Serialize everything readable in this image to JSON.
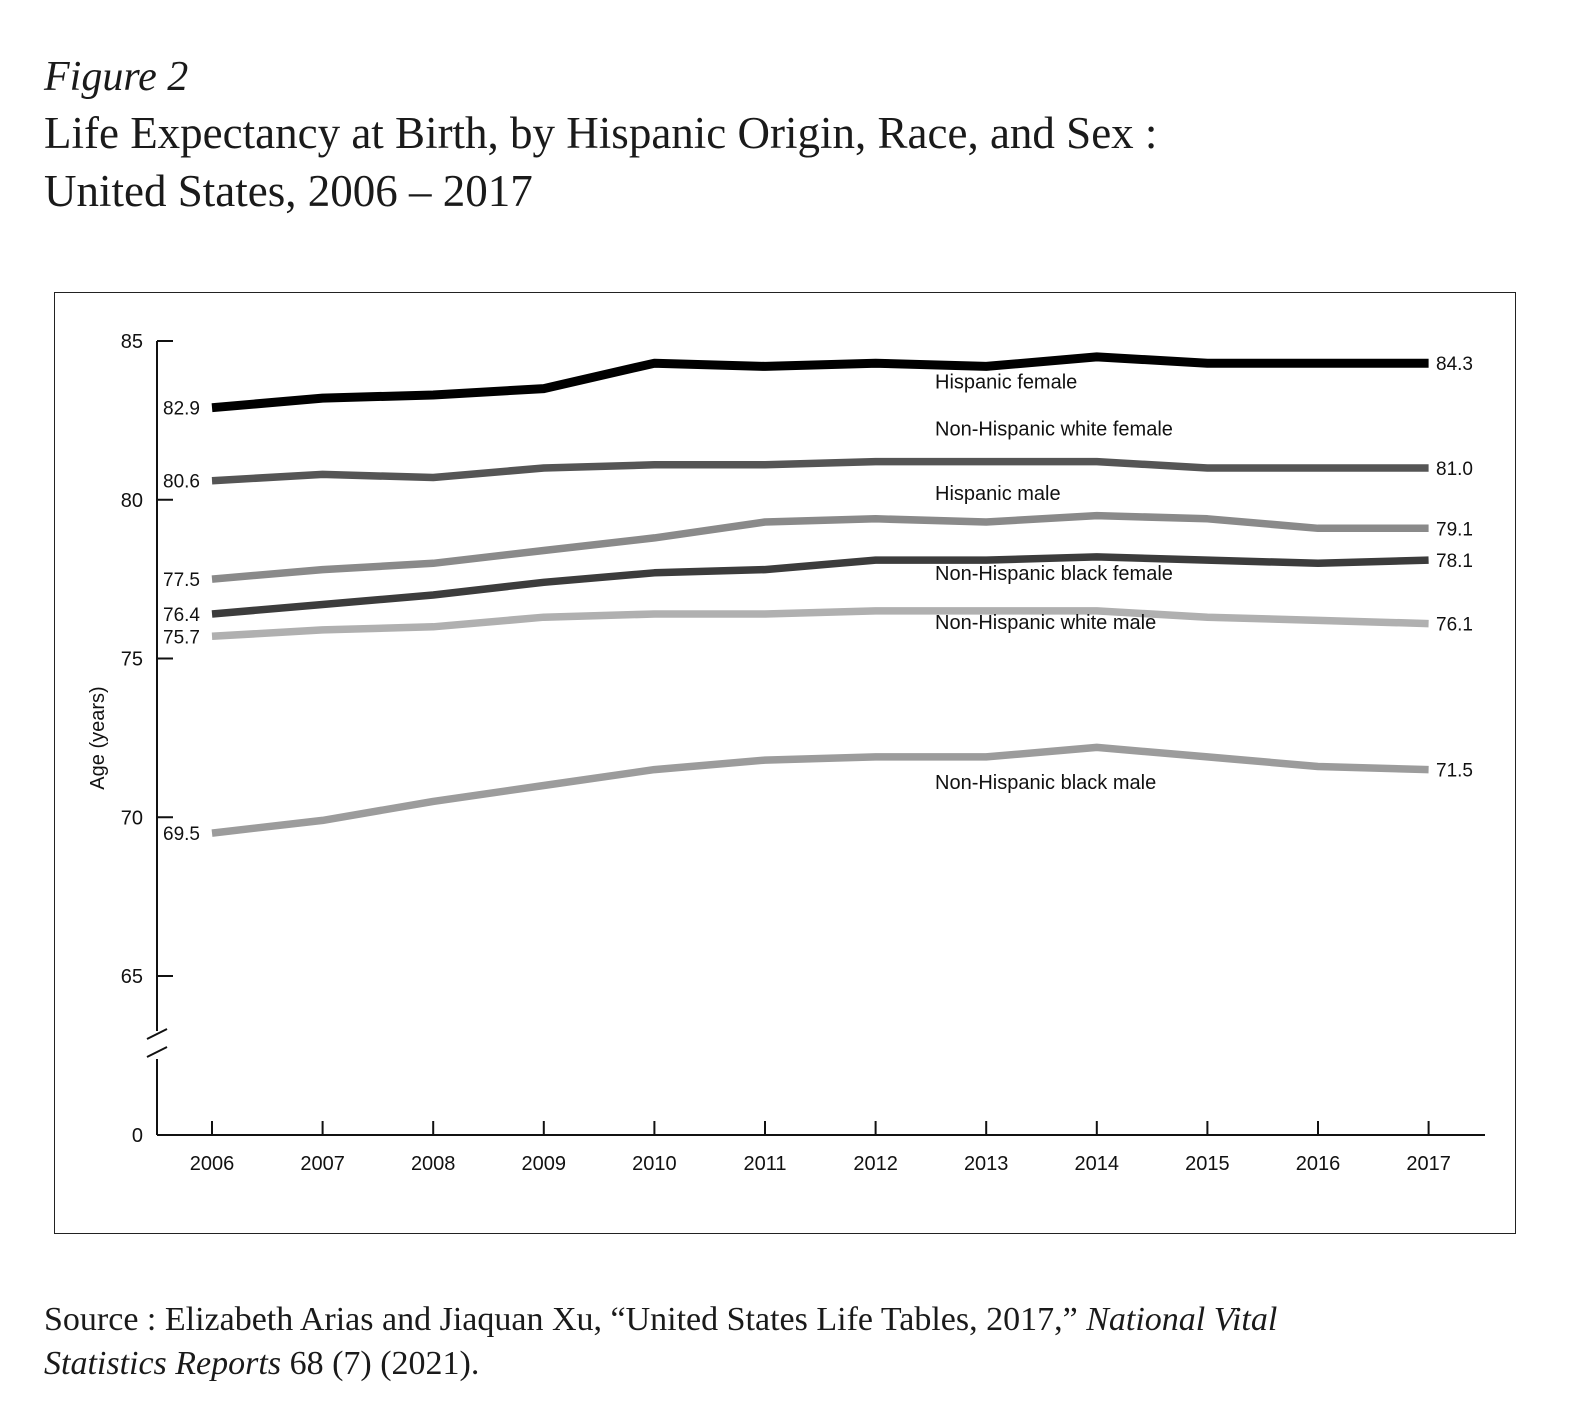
{
  "figure_label": "Figure 2",
  "title_line1": "Life Expectancy at Birth, by Hispanic Origin, Race, and Sex :",
  "title_line2": "United States, 2006 – 2017",
  "source": {
    "prefix": "Source : Elizabeth Arias and Jiaquan Xu, “United States Life Tables, 2017,” ",
    "journal_part1": "National Vital",
    "journal_part2": "Statistics Reports",
    "suffix": " 68 (7) (2021)."
  },
  "chart_data": {
    "type": "line",
    "ylabel": "Age (years)",
    "xlabel": "",
    "x": [
      2006,
      2007,
      2008,
      2009,
      2010,
      2011,
      2012,
      2013,
      2014,
      2015,
      2016,
      2017
    ],
    "y_ticks": [
      0,
      65,
      70,
      75,
      80,
      85
    ],
    "ylim": [
      0,
      85
    ],
    "y_axis_break": "between 0 and 65",
    "grid": false,
    "series": [
      {
        "name": "Hispanic female",
        "color": "#000000",
        "start_label": "82.9",
        "end_label": "84.3",
        "values": [
          82.9,
          83.2,
          83.3,
          83.5,
          84.3,
          84.2,
          84.3,
          84.2,
          84.5,
          84.3,
          84.3,
          84.3
        ]
      },
      {
        "name": "Non-Hispanic white female",
        "color": "#555555",
        "start_label": "80.6",
        "end_label": "81.0",
        "values": [
          80.6,
          80.8,
          80.7,
          81.0,
          81.1,
          81.1,
          81.2,
          81.2,
          81.2,
          81.0,
          81.0,
          81.0
        ]
      },
      {
        "name": "Hispanic male",
        "color": "#8a8a8a",
        "start_label": "77.5",
        "end_label": "79.1",
        "values": [
          77.5,
          77.8,
          78.0,
          78.4,
          78.8,
          79.3,
          79.4,
          79.3,
          79.5,
          79.4,
          79.1,
          79.1
        ]
      },
      {
        "name": "Non-Hispanic black female",
        "color": "#3c3c3c",
        "start_label": "76.4",
        "end_label": "78.1",
        "values": [
          76.4,
          76.7,
          77.0,
          77.4,
          77.7,
          77.8,
          78.1,
          78.1,
          78.2,
          78.1,
          78.0,
          78.1
        ]
      },
      {
        "name": "Non-Hispanic white male",
        "color": "#b0b0b0",
        "start_label": "75.7",
        "end_label": "76.1",
        "values": [
          75.7,
          75.9,
          76.0,
          76.3,
          76.4,
          76.4,
          76.5,
          76.5,
          76.5,
          76.3,
          76.2,
          76.1
        ]
      },
      {
        "name": "Non-Hispanic black male",
        "color": "#9c9c9c",
        "start_label": "69.5",
        "end_label": "71.5",
        "values": [
          69.5,
          69.9,
          70.5,
          71.0,
          71.5,
          71.8,
          71.9,
          71.9,
          72.2,
          71.9,
          71.6,
          71.5
        ]
      }
    ]
  }
}
